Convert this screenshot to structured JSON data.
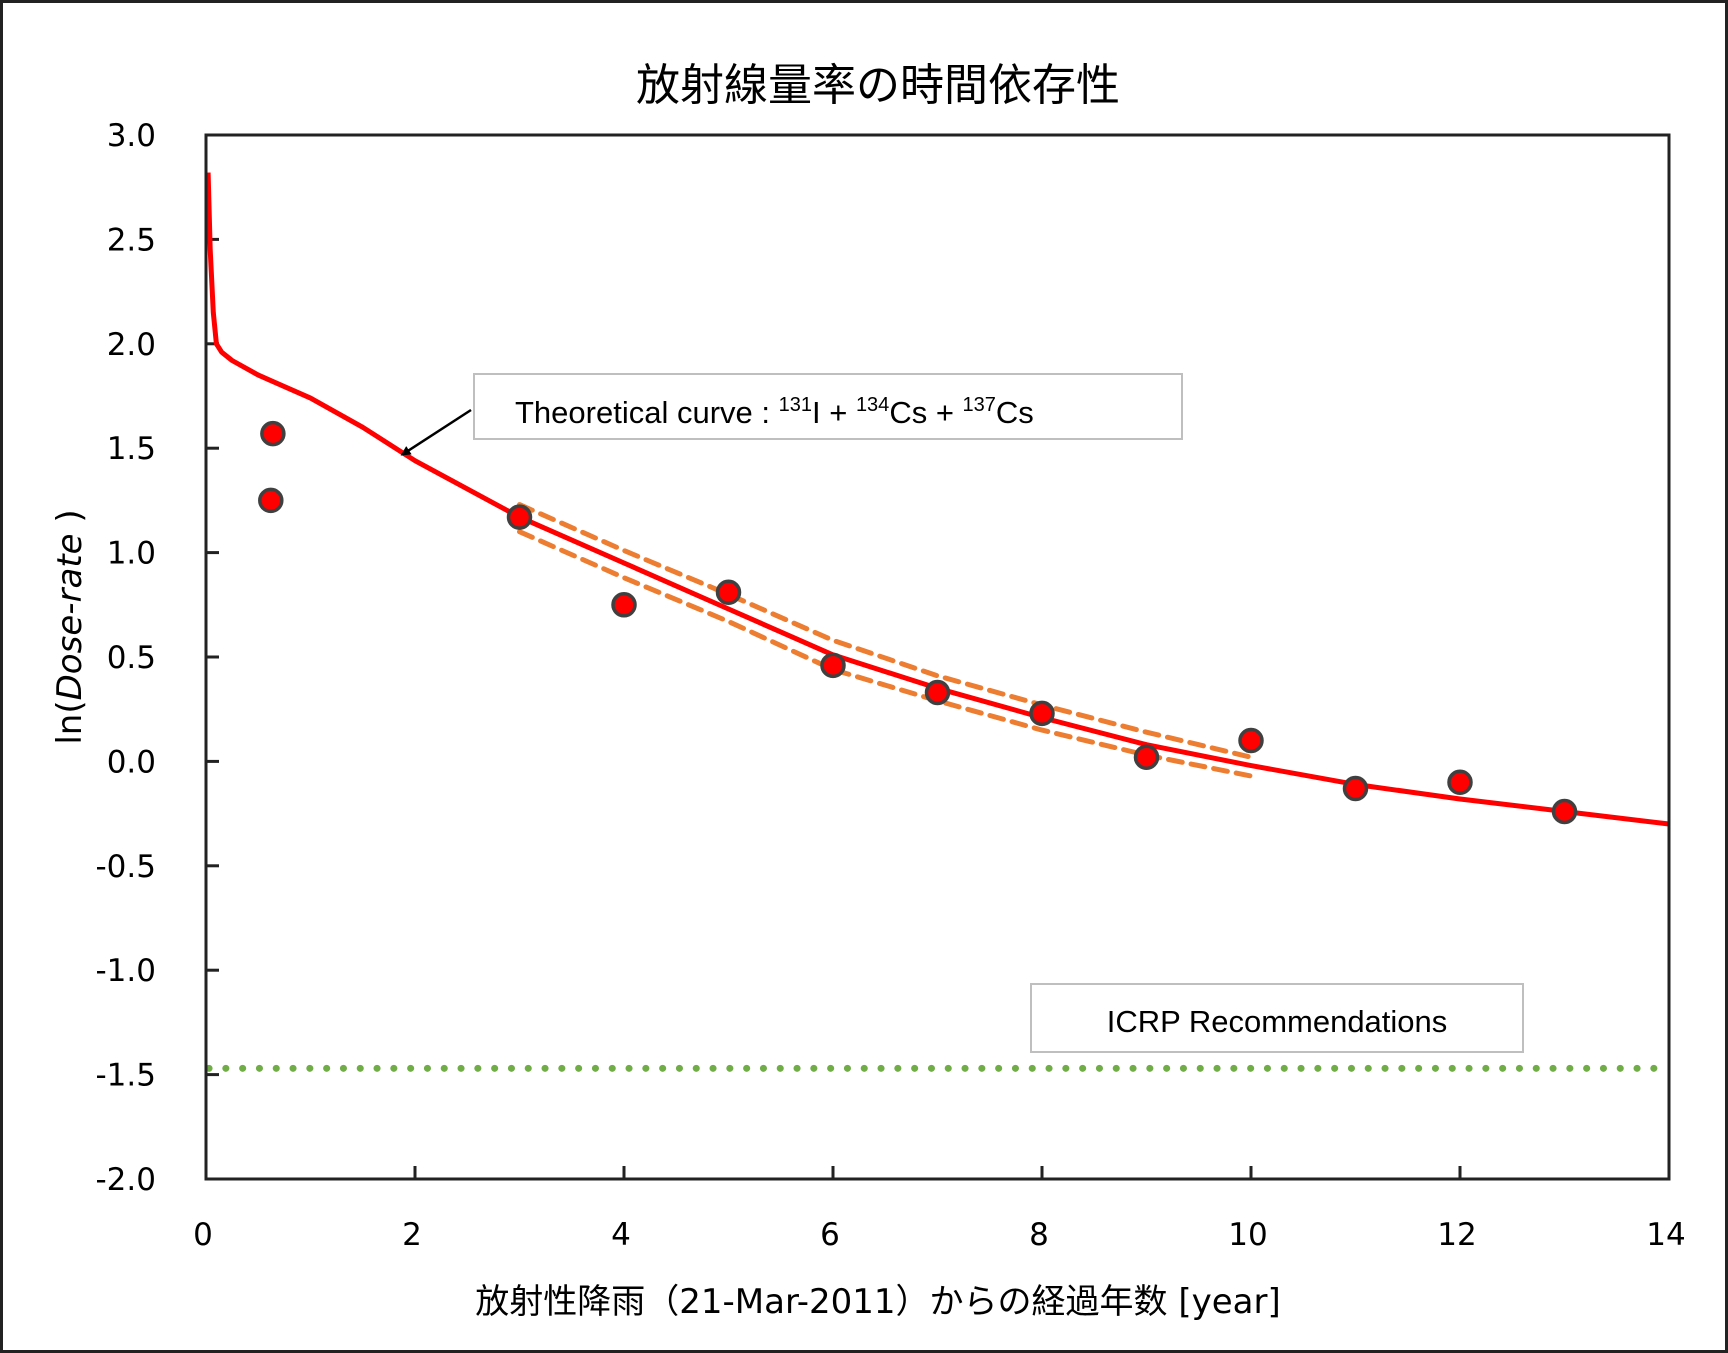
{
  "chart_data": {
    "type": "scatter",
    "title": "放射線量率の時間依存性",
    "xlabel": "放射性降雨（21-Mar-2011）からの経過年数 [year]",
    "ylabel": {
      "prefix": "ln(",
      "italic": "Dose-rate",
      "suffix": " )"
    },
    "xlim": [
      0,
      14
    ],
    "ylim": [
      -2.0,
      3.0
    ],
    "xticks": [
      0,
      2,
      4,
      6,
      8,
      10,
      12,
      14
    ],
    "xtick_labels": [
      "0",
      "2",
      "4",
      "6",
      "8",
      "10",
      "12",
      "14"
    ],
    "yticks": [
      3.0,
      2.5,
      2.0,
      1.5,
      1.0,
      0.5,
      0.0,
      -0.5,
      -1.0,
      -1.5,
      -2.0
    ],
    "ytick_labels": [
      "3.0",
      "2.5",
      "2.0",
      "1.5",
      "1.0",
      "0.5",
      "0.0",
      "-0.5",
      "-1.0",
      "-1.5",
      "-2.0"
    ],
    "grid": false,
    "series": [
      {
        "name": "Theoretical curve",
        "kind": "line",
        "color": "#ff0000",
        "x": [
          0.02,
          0.04,
          0.07,
          0.1,
          0.15,
          0.25,
          0.5,
          1.0,
          1.5,
          2.0,
          3.0,
          4.0,
          5.0,
          6.0,
          7.0,
          8.0,
          9.0,
          10.0,
          11.0,
          12.0,
          13.0,
          14.0
        ],
        "y": [
          2.82,
          2.45,
          2.15,
          2.0,
          1.96,
          1.92,
          1.85,
          1.74,
          1.6,
          1.44,
          1.17,
          0.95,
          0.73,
          0.51,
          0.35,
          0.21,
          0.08,
          -0.02,
          -0.11,
          -0.18,
          -0.24,
          -0.3
        ]
      },
      {
        "name": "Upper band",
        "kind": "dashed",
        "color": "#ed7d31",
        "x": [
          3,
          4,
          5,
          6,
          7,
          8,
          9,
          10
        ],
        "y": [
          1.23,
          1.01,
          0.8,
          0.58,
          0.41,
          0.27,
          0.14,
          0.02
        ]
      },
      {
        "name": "Lower band",
        "kind": "dashed",
        "color": "#ed7d31",
        "x": [
          3,
          4,
          5,
          6,
          7,
          8,
          9,
          10
        ],
        "y": [
          1.1,
          0.88,
          0.67,
          0.44,
          0.29,
          0.15,
          0.03,
          -0.07
        ]
      },
      {
        "name": "Measured",
        "kind": "points",
        "color": "#ff0000",
        "edge": "#404040",
        "x": [
          0.64,
          0.62,
          3,
          4,
          5,
          6,
          7,
          8,
          9,
          10,
          11,
          12,
          13
        ],
        "y": [
          1.57,
          1.25,
          1.17,
          0.75,
          0.81,
          0.46,
          0.33,
          0.23,
          0.02,
          0.1,
          -0.13,
          -0.1,
          -0.24
        ]
      },
      {
        "name": "ICRP Recommendations",
        "kind": "dotted",
        "color": "#70ad47",
        "x": [
          0,
          14
        ],
        "y": [
          -1.47,
          -1.47
        ]
      }
    ],
    "annotations": {
      "theoretical": {
        "prefix": "Theoretical curve : ",
        "sup1": "131",
        "el1": "I + ",
        "sup2": "134",
        "el2": "Cs + ",
        "sup3": "137",
        "el3": "Cs",
        "arrow_to": [
          1.84,
          1.46
        ]
      },
      "icrp": "ICRP Recommendations"
    }
  }
}
